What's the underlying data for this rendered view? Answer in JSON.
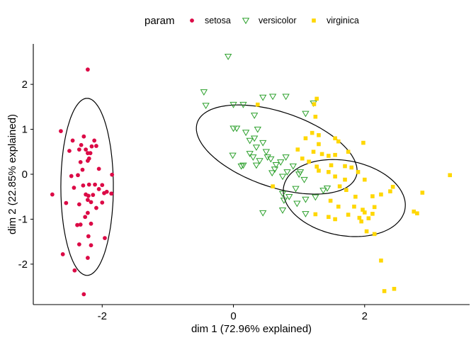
{
  "chart_data": {
    "type": "scatter",
    "xlabel": "dim 1 (72.96% explained)",
    "ylabel": "dim 2 (22.85% explained)",
    "xlim": [
      -3.05,
      3.6
    ],
    "ylim": [
      -2.9,
      2.9
    ],
    "xticks": [
      -2,
      0,
      2
    ],
    "yticks": [
      -2,
      -1,
      0,
      1,
      2
    ],
    "grid": false,
    "legend": {
      "title": "param",
      "position": "top"
    },
    "series": [
      {
        "name": "setosa",
        "marker": "circle",
        "color": "#DC0A46",
        "ellipse": {
          "cx": -2.23,
          "cy": -0.28,
          "rx": 0.4,
          "ry": 1.97,
          "angle": 0
        },
        "points": [
          [
            -2.22,
            2.33
          ],
          [
            -2.63,
            0.96
          ],
          [
            -2.5,
            0.52
          ],
          [
            -2.45,
            0.75
          ],
          [
            -2.35,
            0.55
          ],
          [
            -2.33,
            0.27
          ],
          [
            -2.32,
            0.65
          ],
          [
            -2.28,
            0.84
          ],
          [
            -2.25,
            0.55
          ],
          [
            -2.22,
            0.47
          ],
          [
            -2.2,
            0.35
          ],
          [
            -2.18,
            0.47
          ],
          [
            -2.16,
            0.62
          ],
          [
            -2.12,
            0.75
          ],
          [
            -2.09,
            0.63
          ],
          [
            -2.05,
            0.12
          ],
          [
            -2.22,
            0.3
          ],
          [
            -2.3,
            0.1
          ],
          [
            -2.37,
            -0.02
          ],
          [
            -2.47,
            -0.04
          ],
          [
            -2.43,
            -0.3
          ],
          [
            -2.29,
            -0.25
          ],
          [
            -2.25,
            -0.45
          ],
          [
            -2.2,
            -0.23
          ],
          [
            -2.21,
            -0.48
          ],
          [
            -2.14,
            -0.46
          ],
          [
            -2.11,
            -0.23
          ],
          [
            -2.05,
            -0.33
          ],
          [
            -1.97,
            -0.42
          ],
          [
            -1.93,
            -0.39
          ],
          [
            -1.86,
            -0.43
          ],
          [
            -2.55,
            -0.64
          ],
          [
            -2.35,
            -0.67
          ],
          [
            -2.22,
            -0.57
          ],
          [
            -2.17,
            -0.62
          ],
          [
            -2.09,
            -0.75
          ],
          [
            -2.0,
            -0.63
          ],
          [
            -2.22,
            -0.86
          ],
          [
            -2.26,
            -0.95
          ],
          [
            -2.33,
            -1.12
          ],
          [
            -2.38,
            -1.13
          ],
          [
            -2.17,
            -1.1
          ],
          [
            -2.21,
            -1.38
          ],
          [
            -2.17,
            -1.58
          ],
          [
            -2.35,
            -1.56
          ],
          [
            -1.96,
            -1.42
          ],
          [
            -2.6,
            -1.78
          ],
          [
            -2.22,
            -1.86
          ],
          [
            -2.42,
            -2.14
          ],
          [
            -2.28,
            -2.67
          ],
          [
            -1.85,
            -0.01
          ],
          [
            -2.76,
            -0.45
          ],
          [
            -2.0,
            -0.24
          ]
        ]
      },
      {
        "name": "versicolor",
        "marker": "triangle-down",
        "color": "#2CA02C",
        "ellipse": {
          "cx": 0.66,
          "cy": 0.55,
          "rx": 1.37,
          "ry": 0.78,
          "angle": -33
        },
        "points": [
          [
            -0.08,
            2.62
          ],
          [
            -0.45,
            1.83
          ],
          [
            -0.42,
            1.53
          ],
          [
            0.0,
            1.55
          ],
          [
            0.15,
            1.55
          ],
          [
            0.32,
            1.31
          ],
          [
            0.45,
            1.71
          ],
          [
            0.6,
            1.73
          ],
          [
            0.8,
            1.73
          ],
          [
            1.1,
            1.35
          ],
          [
            1.22,
            1.58
          ],
          [
            0.0,
            1.02
          ],
          [
            0.05,
            1.02
          ],
          [
            0.19,
            0.93
          ],
          [
            0.25,
            0.75
          ],
          [
            0.32,
            0.8
          ],
          [
            0.37,
            1.0
          ],
          [
            0.25,
            0.46
          ],
          [
            0.35,
            0.6
          ],
          [
            0.45,
            0.7
          ],
          [
            0.5,
            0.5
          ],
          [
            0.4,
            0.3
          ],
          [
            -0.01,
            0.42
          ],
          [
            0.12,
            0.18
          ],
          [
            0.15,
            0.2
          ],
          [
            0.3,
            0.38
          ],
          [
            0.35,
            0.2
          ],
          [
            0.52,
            0.38
          ],
          [
            0.57,
            0.34
          ],
          [
            0.65,
            0.21
          ],
          [
            0.72,
            0.27
          ],
          [
            0.8,
            0.38
          ],
          [
            0.59,
            0.03
          ],
          [
            0.63,
            0.11
          ],
          [
            0.75,
            -0.05
          ],
          [
            0.82,
            0.05
          ],
          [
            0.91,
            0.18
          ],
          [
            1.0,
            0.0
          ],
          [
            1.02,
            0.05
          ],
          [
            1.08,
            -0.12
          ],
          [
            0.95,
            -0.32
          ],
          [
            0.75,
            -0.43
          ],
          [
            0.85,
            -0.5
          ],
          [
            1.1,
            -0.56
          ],
          [
            1.25,
            -0.51
          ],
          [
            1.37,
            -0.36
          ],
          [
            1.43,
            -0.31
          ],
          [
            0.97,
            -0.65
          ],
          [
            0.77,
            -0.58
          ],
          [
            0.75,
            -0.8
          ],
          [
            1.1,
            -0.88
          ],
          [
            0.45,
            -0.86
          ]
        ]
      },
      {
        "name": "virginica",
        "marker": "square",
        "color": "#FFD700",
        "ellipse": {
          "cx": 1.69,
          "cy": -0.53,
          "rx": 0.98,
          "ry": 0.8,
          "angle": -33
        },
        "points": [
          [
            1.27,
            1.68
          ],
          [
            1.23,
            1.56
          ],
          [
            0.37,
            1.55
          ],
          [
            1.25,
            1.28
          ],
          [
            1.2,
            0.92
          ],
          [
            1.3,
            0.87
          ],
          [
            1.3,
            0.67
          ],
          [
            1.1,
            0.8
          ],
          [
            1.55,
            0.8
          ],
          [
            1.6,
            0.73
          ],
          [
            1.98,
            0.7
          ],
          [
            0.98,
            0.55
          ],
          [
            1.05,
            0.35
          ],
          [
            1.15,
            0.28
          ],
          [
            1.22,
            0.5
          ],
          [
            1.35,
            0.45
          ],
          [
            1.45,
            0.41
          ],
          [
            1.55,
            0.43
          ],
          [
            1.75,
            0.5
          ],
          [
            1.27,
            0.17
          ],
          [
            1.3,
            0.08
          ],
          [
            1.45,
            0.05
          ],
          [
            1.49,
            0.2
          ],
          [
            1.7,
            0.18
          ],
          [
            1.8,
            0.15
          ],
          [
            1.55,
            -0.05
          ],
          [
            1.7,
            -0.12
          ],
          [
            1.9,
            0.05
          ],
          [
            2.0,
            -0.12
          ],
          [
            1.62,
            -0.27
          ],
          [
            1.72,
            -0.35
          ],
          [
            1.86,
            -0.5
          ],
          [
            2.12,
            -0.49
          ],
          [
            2.25,
            -0.45
          ],
          [
            2.39,
            -0.38
          ],
          [
            2.43,
            -0.28
          ],
          [
            2.88,
            -0.41
          ],
          [
            3.3,
            -0.02
          ],
          [
            1.48,
            -0.59
          ],
          [
            1.6,
            -0.72
          ],
          [
            1.84,
            -0.72
          ],
          [
            1.97,
            -0.79
          ],
          [
            2.0,
            -0.85
          ],
          [
            1.95,
            -1.05
          ],
          [
            1.92,
            -0.97
          ],
          [
            2.06,
            -0.98
          ],
          [
            2.12,
            -0.88
          ],
          [
            2.15,
            -0.73
          ],
          [
            1.75,
            -0.9
          ],
          [
            1.45,
            -0.95
          ],
          [
            1.25,
            -0.89
          ],
          [
            1.55,
            -1.0
          ],
          [
            2.15,
            -1.33
          ],
          [
            2.03,
            -1.27
          ],
          [
            2.8,
            -0.87
          ],
          [
            2.75,
            -0.83
          ],
          [
            2.25,
            -1.92
          ],
          [
            2.45,
            -2.55
          ],
          [
            2.3,
            -2.6
          ],
          [
            0.6,
            -0.27
          ]
        ]
      }
    ]
  }
}
